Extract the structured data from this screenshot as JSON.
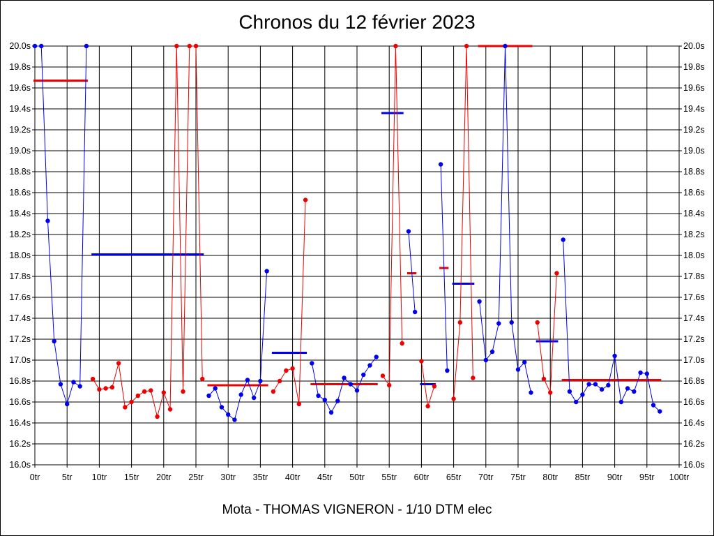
{
  "chart_data": {
    "type": "line",
    "title": "Chronos du 12 février 2023",
    "xlabel": "Mota - THOMAS VIGNERON - 1/10 DTM elec",
    "ylabel": "",
    "xlim": [
      0,
      100
    ],
    "ylim": [
      16.0,
      20.0
    ],
    "grid": true,
    "x_ticks": [
      "0tr",
      "5tr",
      "10tr",
      "15tr",
      "20tr",
      "25tr",
      "30tr",
      "35tr",
      "40tr",
      "45tr",
      "50tr",
      "55tr",
      "60tr",
      "65tr",
      "70tr",
      "75tr",
      "80tr",
      "85tr",
      "90tr",
      "95tr",
      "100tr"
    ],
    "y_ticks": [
      "16.0s",
      "16.2s",
      "16.4s",
      "16.6s",
      "16.8s",
      "17.0s",
      "17.2s",
      "17.4s",
      "17.6s",
      "17.8s",
      "18.0s",
      "18.2s",
      "18.4s",
      "18.6s",
      "18.8s",
      "19.0s",
      "19.2s",
      "19.4s",
      "19.6s",
      "19.8s",
      "20.0s"
    ],
    "colors": {
      "blue": "#0000ee",
      "red": "#ee0000"
    },
    "series": [
      {
        "color": "blue",
        "x": [
          0,
          1,
          2,
          3,
          4,
          5,
          6,
          7,
          8
        ],
        "y": [
          20.0,
          20.0,
          18.33,
          17.18,
          16.77,
          16.58,
          16.79,
          16.75,
          20.0
        ]
      },
      {
        "color": "red",
        "x": [
          9,
          10,
          11,
          12,
          13,
          14,
          15,
          16,
          17,
          18,
          19,
          20,
          21,
          22,
          23,
          24,
          25,
          26
        ],
        "y": [
          16.82,
          16.72,
          16.73,
          16.74,
          16.97,
          16.55,
          16.6,
          16.66,
          16.7,
          16.71,
          16.46,
          16.69,
          16.53,
          20.0,
          16.7,
          20.0,
          20.0,
          16.82
        ]
      },
      {
        "color": "blue",
        "x": [
          27,
          28,
          29,
          30,
          31,
          32,
          33,
          34,
          35,
          36
        ],
        "y": [
          16.66,
          16.73,
          16.55,
          16.48,
          16.43,
          16.67,
          16.81,
          16.64,
          16.8,
          17.85
        ]
      },
      {
        "color": "red",
        "x": [
          37,
          38,
          39,
          40,
          41,
          42
        ],
        "y": [
          16.7,
          16.8,
          16.9,
          16.92,
          16.58,
          18.53
        ]
      },
      {
        "color": "blue",
        "x": [
          43,
          44,
          45,
          46,
          47,
          48,
          49,
          50,
          51,
          52,
          53
        ],
        "y": [
          16.97,
          16.66,
          16.62,
          16.5,
          16.61,
          16.83,
          16.77,
          16.71,
          16.86,
          16.95,
          17.03
        ]
      },
      {
        "color": "red",
        "x": [
          54,
          55,
          56,
          57
        ],
        "y": [
          16.85,
          16.76,
          20.0,
          17.16
        ]
      },
      {
        "color": "blue",
        "x": [
          58,
          59
        ],
        "y": [
          18.23,
          17.46
        ]
      },
      {
        "color": "red",
        "x": [
          60,
          61,
          62
        ],
        "y": [
          16.99,
          16.56,
          16.75
        ]
      },
      {
        "color": "blue",
        "x": [
          63,
          64
        ],
        "y": [
          18.87,
          16.9
        ]
      },
      {
        "color": "red",
        "x": [
          65,
          66,
          67,
          68
        ],
        "y": [
          16.63,
          17.36,
          20.0,
          16.83
        ]
      },
      {
        "color": "blue",
        "x": [
          69,
          70,
          71,
          72,
          73,
          74,
          75,
          76,
          77
        ],
        "y": [
          17.56,
          17.0,
          17.08,
          17.35,
          20.0,
          17.36,
          16.91,
          16.98,
          16.69
        ]
      },
      {
        "color": "red",
        "x": [
          78,
          79,
          80,
          81
        ],
        "y": [
          17.36,
          16.82,
          16.69,
          17.83
        ]
      },
      {
        "color": "blue",
        "x": [
          82,
          83,
          84,
          85,
          86,
          87,
          88,
          89,
          90,
          91,
          92,
          93,
          94,
          95,
          96,
          97
        ],
        "y": [
          18.15,
          16.7,
          16.6,
          16.67,
          16.77,
          16.77,
          16.72,
          16.76,
          17.04,
          16.6,
          16.73,
          16.7,
          16.88,
          16.87,
          16.57,
          16.51
        ]
      }
    ],
    "averages": [
      {
        "color": "red",
        "x": [
          0,
          8
        ],
        "y": 19.67
      },
      {
        "color": "blue",
        "x": [
          9,
          26
        ],
        "y": 18.01
      },
      {
        "color": "red",
        "x": [
          27,
          36
        ],
        "y": 16.76
      },
      {
        "color": "blue",
        "x": [
          37,
          42
        ],
        "y": 17.07
      },
      {
        "color": "red",
        "x": [
          43,
          53
        ],
        "y": 16.77
      },
      {
        "color": "blue",
        "x": [
          54,
          57
        ],
        "y": 19.36
      },
      {
        "color": "red",
        "x": [
          58,
          59
        ],
        "y": 17.83
      },
      {
        "color": "blue",
        "x": [
          60,
          62
        ],
        "y": 16.77
      },
      {
        "color": "red",
        "x": [
          63,
          64
        ],
        "y": 17.88
      },
      {
        "color": "blue",
        "x": [
          65,
          68
        ],
        "y": 17.73
      },
      {
        "color": "red",
        "x": [
          69,
          77
        ],
        "y": 20.0
      },
      {
        "color": "blue",
        "x": [
          78,
          81
        ],
        "y": 17.18
      },
      {
        "color": "red",
        "x": [
          82,
          97
        ],
        "y": 16.81
      }
    ]
  }
}
